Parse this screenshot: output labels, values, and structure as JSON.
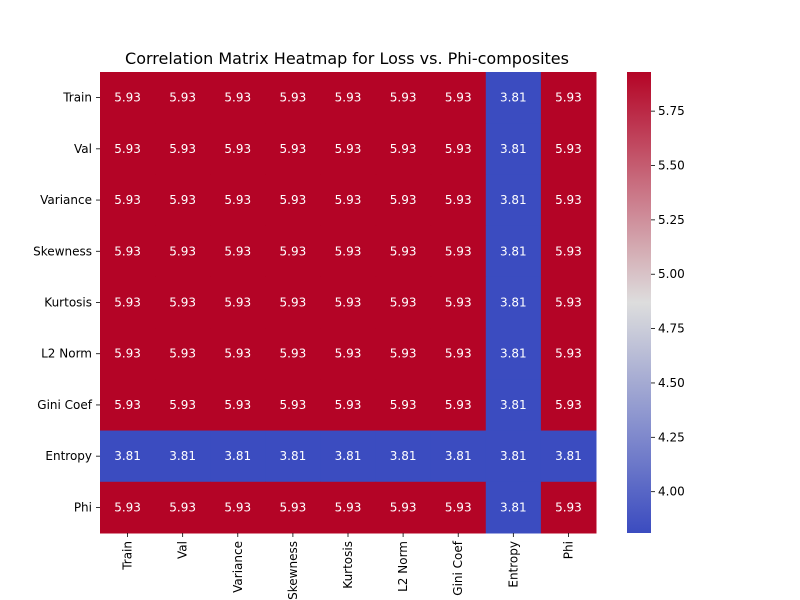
{
  "chart_data": {
    "type": "heatmap",
    "title": "Correlation Matrix Heatmap for Loss vs. Phi-composites",
    "rows": [
      "Train",
      "Val",
      "Variance",
      "Skewness",
      "Kurtosis",
      "L2 Norm",
      "Gini Coef",
      "Entropy",
      "Phi"
    ],
    "cols": [
      "Train",
      "Val",
      "Variance",
      "Skewness",
      "Kurtosis",
      "L2 Norm",
      "Gini Coef",
      "Entropy",
      "Phi"
    ],
    "values": [
      [
        5.93,
        5.93,
        5.93,
        5.93,
        5.93,
        5.93,
        5.93,
        3.81,
        5.93
      ],
      [
        5.93,
        5.93,
        5.93,
        5.93,
        5.93,
        5.93,
        5.93,
        3.81,
        5.93
      ],
      [
        5.93,
        5.93,
        5.93,
        5.93,
        5.93,
        5.93,
        5.93,
        3.81,
        5.93
      ],
      [
        5.93,
        5.93,
        5.93,
        5.93,
        5.93,
        5.93,
        5.93,
        3.81,
        5.93
      ],
      [
        5.93,
        5.93,
        5.93,
        5.93,
        5.93,
        5.93,
        5.93,
        3.81,
        5.93
      ],
      [
        5.93,
        5.93,
        5.93,
        5.93,
        5.93,
        5.93,
        5.93,
        3.81,
        5.93
      ],
      [
        5.93,
        5.93,
        5.93,
        5.93,
        5.93,
        5.93,
        5.93,
        3.81,
        5.93
      ],
      [
        3.81,
        3.81,
        3.81,
        3.81,
        3.81,
        3.81,
        3.81,
        3.81,
        3.81
      ],
      [
        5.93,
        5.93,
        5.93,
        5.93,
        5.93,
        5.93,
        5.93,
        3.81,
        5.93
      ]
    ],
    "colormap": "coolwarm",
    "vmin": 3.81,
    "vmax": 5.93,
    "colorbar_ticks": [
      4.0,
      4.25,
      4.5,
      4.75,
      5.0,
      5.25,
      5.5,
      5.75
    ],
    "colorbar_tick_labels": [
      "4.00",
      "4.25",
      "4.50",
      "4.75",
      "5.00",
      "5.25",
      "5.50",
      "5.75"
    ],
    "annotations": true,
    "xtick_rotation": 90,
    "colors": {
      "low": "#3b4cc0",
      "mid": "#dddddd",
      "high": "#b40426",
      "annotation_text": "#ffffff"
    }
  }
}
